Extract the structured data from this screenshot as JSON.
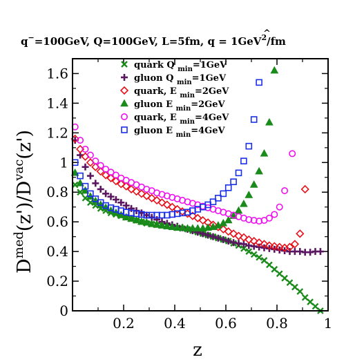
{
  "chart_data": {
    "type": "scatter",
    "title": {
      "q_minus": "q",
      "q_minus_sup": "−",
      "part1": "=100GeV, Q=100GeV, L=5fm, ",
      "qhat_sym": "q",
      "qhat_hat": "^",
      "part2": " = 1GeV",
      "part2_sup": "2",
      "part3": "/fm"
    },
    "xlabel": "z",
    "ylabel": {
      "d1": "D",
      "sup1": "med",
      "mid": "(z')/D",
      "sup2": "vac",
      "end": "(z')"
    },
    "xlim": [
      0,
      1
    ],
    "ylim": [
      0,
      1.7
    ],
    "xticks": [
      "0.2",
      "0.4",
      "0.6",
      "0.8",
      "1"
    ],
    "yticks": [
      "0",
      "0.2",
      "0.4",
      "0.6",
      "0.8",
      "1",
      "1.2",
      "1.4",
      "1.6"
    ],
    "legend_position": "top-center",
    "series": [
      {
        "name": "quark Q",
        "name_sub": "min",
        "name_tail": "=1GeV",
        "marker": "x",
        "color": "#1a8a1a",
        "x": [
          0.01,
          0.03,
          0.05,
          0.07,
          0.09,
          0.11,
          0.13,
          0.15,
          0.17,
          0.19,
          0.21,
          0.23,
          0.25,
          0.27,
          0.29,
          0.31,
          0.33,
          0.35,
          0.37,
          0.39,
          0.41,
          0.43,
          0.45,
          0.47,
          0.49,
          0.51,
          0.53,
          0.55,
          0.57,
          0.59,
          0.61,
          0.63,
          0.65,
          0.67,
          0.69,
          0.71,
          0.73,
          0.75,
          0.77,
          0.79,
          0.81,
          0.83,
          0.85,
          0.87,
          0.89,
          0.91,
          0.93,
          0.95,
          0.97
        ],
        "y": [
          0.85,
          0.8,
          0.76,
          0.73,
          0.71,
          0.69,
          0.675,
          0.66,
          0.65,
          0.64,
          0.63,
          0.62,
          0.61,
          0.6,
          0.59,
          0.585,
          0.58,
          0.575,
          0.57,
          0.565,
          0.56,
          0.555,
          0.55,
          0.54,
          0.53,
          0.52,
          0.51,
          0.5,
          0.49,
          0.48,
          0.47,
          0.455,
          0.44,
          0.42,
          0.4,
          0.38,
          0.36,
          0.34,
          0.31,
          0.28,
          0.25,
          0.22,
          0.19,
          0.16,
          0.13,
          0.09,
          0.06,
          0.03,
          0.0
        ]
      },
      {
        "name": "gluon Q",
        "name_sub": "min",
        "name_tail": "=1GeV",
        "marker": "plus",
        "color": "#5a1660",
        "x": [
          0.01,
          0.03,
          0.05,
          0.07,
          0.09,
          0.11,
          0.13,
          0.15,
          0.17,
          0.19,
          0.21,
          0.23,
          0.25,
          0.27,
          0.29,
          0.31,
          0.33,
          0.35,
          0.37,
          0.39,
          0.41,
          0.43,
          0.45,
          0.47,
          0.49,
          0.51,
          0.53,
          0.55,
          0.57,
          0.59,
          0.61,
          0.63,
          0.65,
          0.67,
          0.69,
          0.71,
          0.73,
          0.75,
          0.77,
          0.79,
          0.81,
          0.83,
          0.85,
          0.87,
          0.89,
          0.91,
          0.93,
          0.95,
          0.97
        ],
        "y": [
          1.15,
          1.05,
          0.97,
          0.91,
          0.86,
          0.82,
          0.79,
          0.77,
          0.75,
          0.73,
          0.71,
          0.69,
          0.675,
          0.66,
          0.645,
          0.63,
          0.615,
          0.6,
          0.59,
          0.58,
          0.57,
          0.56,
          0.55,
          0.54,
          0.53,
          0.52,
          0.51,
          0.5,
          0.49,
          0.48,
          0.47,
          0.46,
          0.455,
          0.45,
          0.44,
          0.435,
          0.43,
          0.425,
          0.42,
          0.415,
          0.41,
          0.405,
          0.4,
          0.4,
          0.4,
          0.395,
          0.395,
          0.4,
          0.4
        ]
      },
      {
        "name": "quark, E",
        "name_sub": "min",
        "name_tail": "=2GeV",
        "marker": "diamond",
        "color": "#e8101a",
        "x": [
          0.01,
          0.03,
          0.05,
          0.07,
          0.09,
          0.11,
          0.13,
          0.15,
          0.17,
          0.19,
          0.21,
          0.23,
          0.25,
          0.27,
          0.29,
          0.31,
          0.33,
          0.35,
          0.37,
          0.39,
          0.41,
          0.43,
          0.45,
          0.47,
          0.49,
          0.51,
          0.53,
          0.55,
          0.57,
          0.59,
          0.61,
          0.63,
          0.65,
          0.67,
          0.69,
          0.71,
          0.73,
          0.75,
          0.77,
          0.79,
          0.81,
          0.83,
          0.85,
          0.87,
          0.89,
          0.91
        ],
        "y": [
          1.16,
          1.09,
          1.04,
          1.0,
          0.97,
          0.94,
          0.915,
          0.895,
          0.875,
          0.855,
          0.84,
          0.82,
          0.805,
          0.79,
          0.775,
          0.76,
          0.745,
          0.73,
          0.715,
          0.7,
          0.685,
          0.67,
          0.655,
          0.64,
          0.625,
          0.61,
          0.595,
          0.58,
          0.565,
          0.55,
          0.535,
          0.52,
          0.505,
          0.495,
          0.48,
          0.47,
          0.46,
          0.45,
          0.44,
          0.435,
          0.43,
          0.425,
          0.43,
          0.45,
          0.52,
          0.82
        ]
      },
      {
        "name": "gluon E",
        "name_sub": "min",
        "name_tail": "=2GeV",
        "marker": "triangle",
        "color": "#1a8a1a",
        "x": [
          0.01,
          0.03,
          0.05,
          0.07,
          0.09,
          0.11,
          0.13,
          0.15,
          0.17,
          0.19,
          0.21,
          0.23,
          0.25,
          0.27,
          0.29,
          0.31,
          0.33,
          0.35,
          0.37,
          0.39,
          0.41,
          0.43,
          0.45,
          0.47,
          0.49,
          0.51,
          0.53,
          0.55,
          0.57,
          0.59,
          0.61,
          0.63,
          0.65,
          0.67,
          0.69,
          0.71,
          0.73,
          0.75,
          0.77,
          0.79
        ],
        "y": [
          0.93,
          0.86,
          0.81,
          0.77,
          0.74,
          0.715,
          0.695,
          0.675,
          0.66,
          0.645,
          0.63,
          0.62,
          0.61,
          0.6,
          0.595,
          0.585,
          0.58,
          0.575,
          0.57,
          0.565,
          0.56,
          0.56,
          0.555,
          0.555,
          0.555,
          0.555,
          0.56,
          0.565,
          0.575,
          0.59,
          0.61,
          0.64,
          0.675,
          0.72,
          0.78,
          0.85,
          0.94,
          1.06,
          1.27,
          1.62
        ]
      },
      {
        "name": "quark, E",
        "name_sub": "min",
        "name_tail": "=4GeV",
        "marker": "circle",
        "color": "#ee11ee",
        "x": [
          0.01,
          0.03,
          0.05,
          0.07,
          0.09,
          0.11,
          0.13,
          0.15,
          0.17,
          0.19,
          0.21,
          0.23,
          0.25,
          0.27,
          0.29,
          0.31,
          0.33,
          0.35,
          0.37,
          0.39,
          0.41,
          0.43,
          0.45,
          0.47,
          0.49,
          0.51,
          0.53,
          0.55,
          0.57,
          0.59,
          0.61,
          0.63,
          0.65,
          0.67,
          0.69,
          0.71,
          0.73,
          0.75,
          0.77,
          0.79,
          0.81,
          0.83,
          0.86
        ],
        "y": [
          1.24,
          1.15,
          1.09,
          1.05,
          1.01,
          0.98,
          0.955,
          0.935,
          0.915,
          0.895,
          0.88,
          0.865,
          0.85,
          0.835,
          0.82,
          0.81,
          0.795,
          0.785,
          0.775,
          0.765,
          0.755,
          0.745,
          0.735,
          0.725,
          0.715,
          0.705,
          0.695,
          0.685,
          0.675,
          0.665,
          0.655,
          0.645,
          0.635,
          0.625,
          0.615,
          0.61,
          0.605,
          0.61,
          0.625,
          0.65,
          0.7,
          0.81,
          1.06
        ]
      },
      {
        "name": "gluon E",
        "name_sub": "min",
        "name_tail": "=4GeV",
        "marker": "square",
        "color": "#1a2ee8",
        "x": [
          0.01,
          0.03,
          0.05,
          0.07,
          0.09,
          0.11,
          0.13,
          0.15,
          0.17,
          0.19,
          0.21,
          0.23,
          0.25,
          0.27,
          0.29,
          0.31,
          0.33,
          0.35,
          0.37,
          0.39,
          0.41,
          0.43,
          0.45,
          0.47,
          0.49,
          0.51,
          0.53,
          0.55,
          0.57,
          0.59,
          0.61,
          0.63,
          0.65,
          0.67,
          0.69,
          0.71,
          0.73
        ],
        "y": [
          1.0,
          0.91,
          0.84,
          0.79,
          0.755,
          0.73,
          0.71,
          0.695,
          0.685,
          0.675,
          0.665,
          0.66,
          0.655,
          0.65,
          0.645,
          0.645,
          0.645,
          0.645,
          0.645,
          0.65,
          0.655,
          0.66,
          0.665,
          0.675,
          0.685,
          0.7,
          0.715,
          0.735,
          0.76,
          0.79,
          0.83,
          0.87,
          0.93,
          1.01,
          1.11,
          1.29,
          1.54
        ]
      }
    ]
  }
}
